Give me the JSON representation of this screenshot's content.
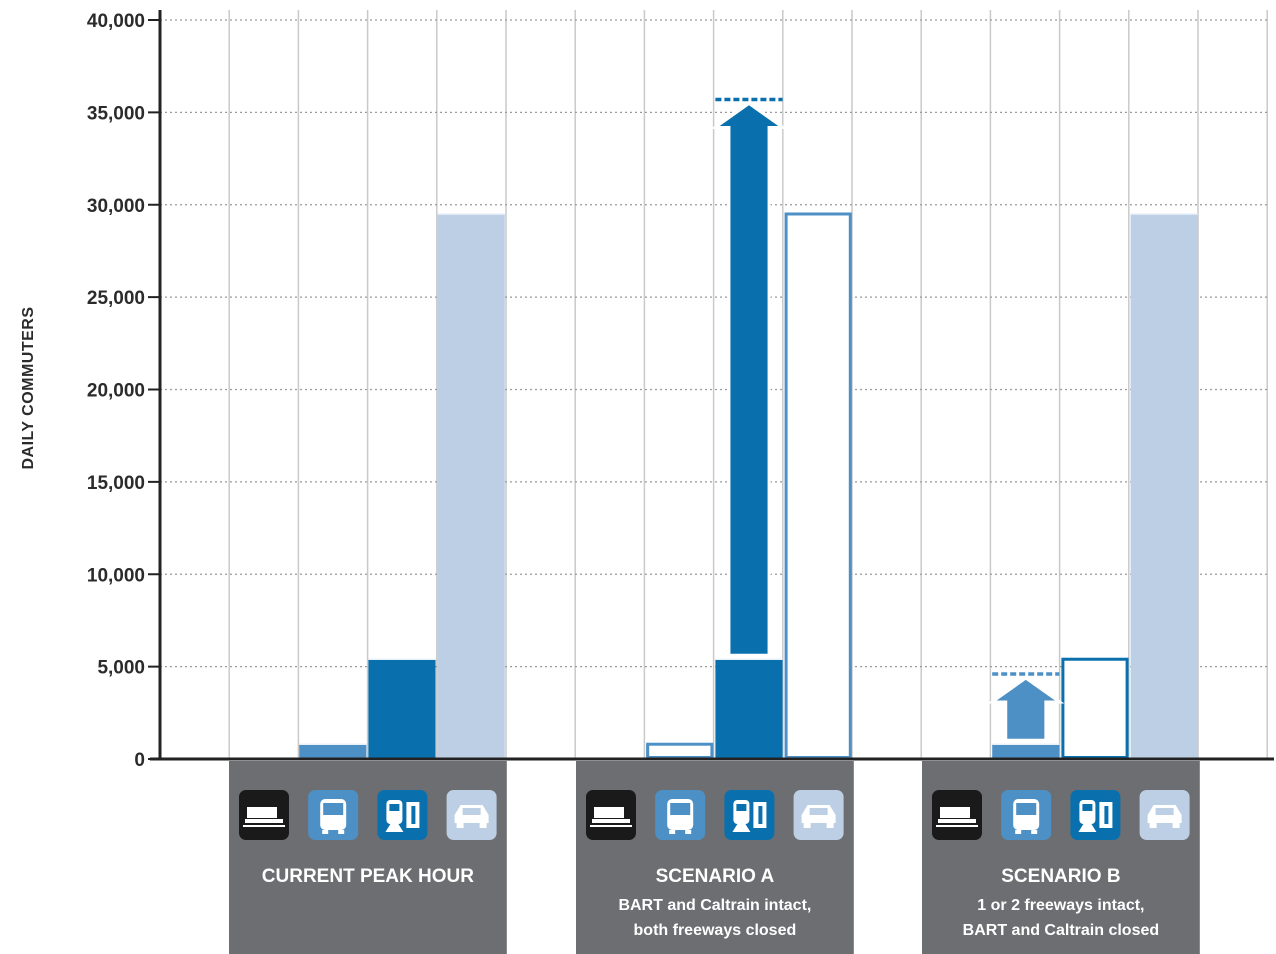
{
  "chart_data": {
    "type": "bar",
    "ylabel": "DAILY COMMUTERS",
    "ylim": [
      0,
      40000
    ],
    "yticks": [
      0,
      5000,
      10000,
      15000,
      20000,
      25000,
      30000,
      35000,
      40000
    ],
    "ytick_labels": [
      "0",
      "5,000",
      "10,000",
      "15,000",
      "20,000",
      "25,000",
      "30,000",
      "35,000",
      "40,000"
    ],
    "grid": "horizontal dotted",
    "modes": [
      "ferry-icon",
      "bus-icon",
      "train-icon",
      "car-icon"
    ],
    "colors": {
      "ferry": "#1a1a1a",
      "bus": "#4d90c6",
      "train": "#0a70ad",
      "car": "#bccfe4",
      "panel": "#6d6e71",
      "axis": "#222222"
    },
    "groups": [
      {
        "title": "CURRENT PEAK HOUR",
        "subtitle": [
          "",
          ""
        ],
        "values": {
          "ferry": 0,
          "bus": 800,
          "train": 5400,
          "car": 29500
        }
      },
      {
        "title": "SCENARIO A",
        "subtitle": [
          "BART and Caltrain intact,",
          "both freeways closed"
        ],
        "values": {
          "ferry": 0,
          "bus": 800,
          "train": 5400,
          "car": 0
        },
        "shift_target": {
          "mode": "train",
          "value": 35700
        },
        "outlined": {
          "bus": 800,
          "car": 29500
        }
      },
      {
        "title": "SCENARIO B",
        "subtitle": [
          "1 or 2 freeways intact,",
          "BART and Caltrain closed"
        ],
        "values": {
          "ferry": 0,
          "bus": 800,
          "train": 0,
          "car": 29500
        },
        "shift_target": {
          "mode": "bus",
          "value": 4600
        },
        "outlined": {
          "train": 5400
        }
      }
    ]
  }
}
